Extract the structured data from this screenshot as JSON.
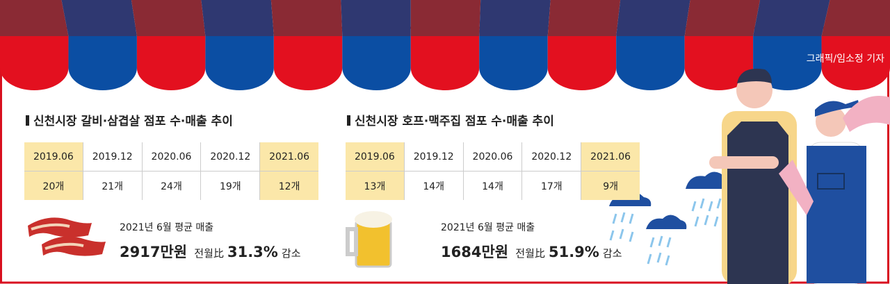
{
  "credit": "그래픽/임소정 기자",
  "sections": [
    {
      "title": "신천시장 갈비·삼겹살 점포 수·매출 추이",
      "table": {
        "header": [
          "2019.06",
          "2019.12",
          "2020.06",
          "2020.12",
          "2021.06"
        ],
        "row": [
          "20개",
          "21개",
          "24개",
          "19개",
          "12개"
        ]
      },
      "sales": {
        "label": "2021년 6월 평균 매출",
        "amount": "2917만원",
        "compare": "전월比",
        "percent": "31.3%",
        "change": "감소"
      }
    },
    {
      "title": "신천시장 호프·맥주집 점포 수·매출 추이",
      "table": {
        "header": [
          "2019.06",
          "2019.12",
          "2020.06",
          "2020.12",
          "2021.06"
        ],
        "row": [
          "13개",
          "14개",
          "14개",
          "17개",
          "9개"
        ]
      },
      "sales": {
        "label": "2021년 6월 평균 매출",
        "amount": "1684만원",
        "compare": "전월比",
        "percent": "51.9%",
        "change": "감소"
      }
    }
  ]
}
